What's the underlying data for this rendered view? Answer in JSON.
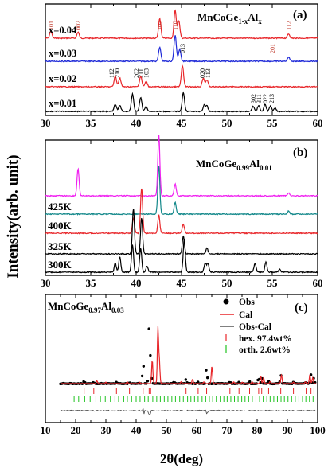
{
  "y_axis_label": "Intensity(arb. unit)",
  "x_axis_label": "2θ(deg)",
  "colors": {
    "black": "#000000",
    "red": "#e8262a",
    "blue": "#1f2ad8",
    "magenta": "#f020f0",
    "teal": "#13888a",
    "green": "#21c321",
    "darkred": "#c0392b"
  },
  "chart_data": [
    {
      "type": "line",
      "panel_label": "(a)",
      "formula": {
        "base": "MnCoGe",
        "sub1": "1-x",
        "mid": "Al",
        "sub2": "x"
      },
      "xlim": [
        30,
        60
      ],
      "ticks": [
        30,
        35,
        40,
        45,
        50,
        55,
        60
      ],
      "series": [
        {
          "name": "x=0.04",
          "color": "#e8262a",
          "offset": 3.6,
          "peaks": [
            [
              30.6,
              0.4
            ],
            [
              33.6,
              0.35
            ],
            [
              42.6,
              1.1
            ],
            [
              44.3,
              1.6
            ],
            [
              44.7,
              1.0
            ],
            [
              56.8,
              0.25
            ]
          ]
        },
        {
          "name": "x=0.03",
          "color": "#1f2ad8",
          "offset": 2.45,
          "peaks": [
            [
              42.6,
              0.8
            ],
            [
              44.3,
              1.5
            ],
            [
              44.8,
              0.7
            ],
            [
              56.8,
              0.25
            ]
          ]
        },
        {
          "name": "x=0.02",
          "color": "#e8262a",
          "offset": 1.3,
          "peaks": [
            [
              37.7,
              0.6
            ],
            [
              38.2,
              0.5
            ],
            [
              40.5,
              0.6
            ],
            [
              41.1,
              0.3
            ],
            [
              45.1,
              1.2
            ],
            [
              47.4,
              0.5
            ],
            [
              47.8,
              0.4
            ]
          ]
        },
        {
          "name": "x=0.01",
          "color": "#000000",
          "offset": 0.15,
          "peaks": [
            [
              37.7,
              0.4
            ],
            [
              38.2,
              0.35
            ],
            [
              39.6,
              1.0
            ],
            [
              40.5,
              0.8
            ],
            [
              41.1,
              0.3
            ],
            [
              45.2,
              1.1
            ],
            [
              47.5,
              0.35
            ],
            [
              47.8,
              0.3
            ],
            [
              52.9,
              0.3
            ],
            [
              53.5,
              0.35
            ],
            [
              54.2,
              0.4
            ],
            [
              54.8,
              0.3
            ],
            [
              55.3,
              0.2
            ]
          ]
        }
      ],
      "peak_labels": [
        {
          "text": "101",
          "x": 30.6,
          "row": "top",
          "color": "#c0392b"
        },
        {
          "text": "002",
          "x": 33.6,
          "row": "top",
          "color": "#c0392b"
        },
        {
          "text": "102",
          "x": 42.6,
          "row": "top",
          "color": "#c0392b"
        },
        {
          "text": "110",
          "x": 44.3,
          "row": "top",
          "color": "#c0392b"
        },
        {
          "text": "112",
          "x": 56.8,
          "row": "top",
          "color": "#c0392b"
        },
        {
          "text": "013",
          "x": 45.1,
          "row": "r2",
          "color": "#000000"
        },
        {
          "text": "201",
          "x": 55.0,
          "row": "r2",
          "color": "#c0392b"
        },
        {
          "text": "112",
          "x": 37.3,
          "row": "r3",
          "color": "#000000"
        },
        {
          "text": "210",
          "x": 37.9,
          "row": "r3",
          "color": "#000000"
        },
        {
          "text": "202",
          "x": 40.0,
          "row": "r3",
          "color": "#000000"
        },
        {
          "text": "211",
          "x": 40.5,
          "row": "r3",
          "color": "#000000"
        },
        {
          "text": "103",
          "x": 41.1,
          "row": "r3",
          "color": "#000000"
        },
        {
          "text": "020",
          "x": 47.3,
          "row": "r3",
          "color": "#000000"
        },
        {
          "text": "113",
          "x": 47.9,
          "row": "r3",
          "color": "#000000"
        },
        {
          "text": "302",
          "x": 52.9,
          "row": "r4",
          "color": "#000000"
        },
        {
          "text": "311",
          "x": 53.5,
          "row": "r4",
          "color": "#000000"
        },
        {
          "text": "022",
          "x": 54.2,
          "row": "r4",
          "color": "#000000"
        },
        {
          "text": "213",
          "x": 54.9,
          "row": "r4",
          "color": "#000000"
        }
      ]
    },
    {
      "type": "line",
      "panel_label": "(b)",
      "formula": {
        "base": "MnCoGe",
        "sub1": "0.99",
        "mid": "Al",
        "sub2": "0.01"
      },
      "xlim": [
        30,
        60
      ],
      "ticks": [
        30,
        35,
        40,
        45,
        50,
        55,
        60
      ],
      "series": [
        {
          "name": "",
          "color": "#f020f0",
          "offset": 3.65,
          "peaks": [
            [
              33.6,
              0.9
            ],
            [
              42.5,
              2.0
            ],
            [
              44.3,
              0.4
            ],
            [
              56.8,
              0.1
            ]
          ]
        },
        {
          "name": "425K",
          "color": "#13888a",
          "offset": 2.75,
          "peaks": [
            [
              42.5,
              1.6
            ],
            [
              44.3,
              0.4
            ],
            [
              56.8,
              0.1
            ]
          ]
        },
        {
          "name": "400K",
          "color": "#e8262a",
          "offset": 1.85,
          "peaks": [
            [
              39.7,
              0.5
            ],
            [
              40.6,
              1.5
            ],
            [
              42.5,
              0.6
            ],
            [
              45.2,
              0.3
            ]
          ]
        },
        {
          "name": "325K",
          "color": "#000000",
          "offset": 0.95,
          "peaks": [
            [
              39.7,
              1.5
            ],
            [
              40.6,
              1.2
            ],
            [
              45.2,
              0.6
            ],
            [
              47.8,
              0.2
            ]
          ]
        },
        {
          "name": "300K",
          "color": "#000000",
          "offset": 0.05,
          "peaks": [
            [
              37.7,
              0.3
            ],
            [
              38.2,
              0.5
            ],
            [
              39.6,
              0.9
            ],
            [
              40.5,
              0.8
            ],
            [
              41.2,
              0.2
            ],
            [
              45.3,
              1.1
            ],
            [
              47.6,
              0.3
            ],
            [
              47.9,
              0.3
            ],
            [
              53.1,
              0.3
            ],
            [
              54.3,
              0.35
            ],
            [
              55.8,
              0.1
            ]
          ]
        }
      ]
    },
    {
      "type": "line",
      "panel_label": "(c)",
      "formula": {
        "base": "MnCoGe",
        "sub1": "0.97",
        "mid": "Al",
        "sub2": "0.03"
      },
      "xlim": [
        10,
        100
      ],
      "ticks": [
        10,
        20,
        30,
        40,
        50,
        60,
        70,
        80,
        90,
        100
      ],
      "legend": [
        "Obs",
        "Cal",
        "Obs-Cal",
        "hex. 97.4wt%",
        "orth. 2.6wt%"
      ],
      "peaks": [
        [
          22.8,
          0.1
        ],
        [
          26.0,
          0.05
        ],
        [
          33.5,
          0.06
        ],
        [
          37.8,
          0.05
        ],
        [
          42.3,
          0.8
        ],
        [
          44.3,
          1.9
        ],
        [
          44.8,
          0.8
        ],
        [
          52.5,
          0.07
        ],
        [
          56.5,
          0.15
        ],
        [
          60.5,
          0.06
        ],
        [
          63.3,
          0.6
        ],
        [
          71.0,
          0.06
        ],
        [
          74.0,
          0.05
        ],
        [
          77.5,
          0.06
        ],
        [
          80.5,
          0.25
        ],
        [
          81.5,
          0.2
        ],
        [
          83.8,
          0.07
        ],
        [
          87.8,
          0.3
        ],
        [
          92.0,
          0.05
        ],
        [
          96.2,
          0.06
        ],
        [
          97.8,
          0.3
        ],
        [
          98.8,
          0.2
        ]
      ],
      "hex_ticks": [
        22.8,
        26.0,
        33.5,
        37.8,
        42.3,
        44.3,
        44.8,
        52.5,
        56.5,
        60.5,
        63.3,
        71.0,
        74.0,
        77.5,
        80.5,
        81.5,
        83.8,
        87.8,
        92.0,
        96.2,
        97.8,
        98.8
      ],
      "orth_ticks": [
        19.5,
        21,
        23,
        24.8,
        26.7,
        28.2,
        29.8,
        31.5,
        33,
        34.2,
        35.9,
        37.1,
        38.5,
        40,
        41.3,
        42.8,
        44,
        45.5,
        46.8,
        48,
        49.3,
        50.5,
        51.8,
        53,
        54.4,
        55.6,
        57,
        58.1,
        59.3,
        60.5,
        61.8,
        63,
        64.2,
        65.3,
        66.5,
        67.8,
        69,
        70.1,
        71.3,
        72.5,
        73.7,
        74.9,
        76,
        77.2,
        78.4,
        79.6,
        80.8,
        82,
        83.2,
        84.3,
        85.5,
        86.7,
        87.9,
        89,
        90.2,
        91.4,
        92.6,
        93.8,
        95,
        96.1,
        97.3,
        98.5
      ]
    }
  ]
}
